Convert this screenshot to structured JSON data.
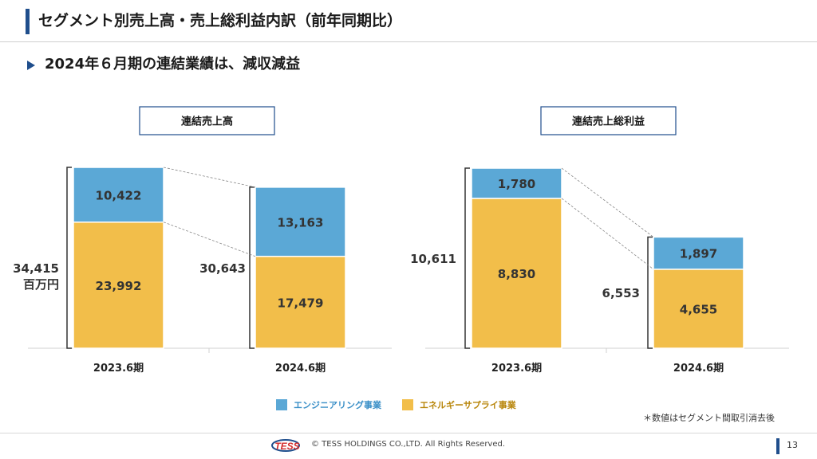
{
  "header": {
    "title": "セグメント別売上高・売上総利益内訳（前年同期比）",
    "subtitle": "2024年６月期の連結業績は、減収減益"
  },
  "colors": {
    "engineering": "#5ba8d6",
    "energy_supply": "#f2be4a",
    "accent": "#1f4e8c",
    "legend_engineering_text": "#3a8fc7",
    "legend_energy_text": "#b8860b"
  },
  "legend": {
    "engineering": "エンジニアリング事業",
    "energy_supply": "エネルギーサプライ事業"
  },
  "note": "＊数値はセグメント間取引消去後",
  "footer": {
    "logo_text": "TESS",
    "copyright": "© TESS HOLDINGS CO.,LTD. All Rights Reserved.",
    "page": "13"
  },
  "chart_data": [
    {
      "type": "bar",
      "stacked": true,
      "title": "連結売上高",
      "categories": [
        "2023.6期",
        "2024.6期"
      ],
      "series": [
        {
          "name": "エネルギーサプライ事業",
          "values": [
            23992,
            17479
          ]
        },
        {
          "name": "エンジニアリング事業",
          "values": [
            10422,
            13163
          ]
        }
      ],
      "totals": [
        34415,
        30643
      ],
      "value_labels": {
        "energy": [
          "23,992",
          "17,479"
        ],
        "eng": [
          "10,422",
          "13,163"
        ]
      },
      "total_labels": [
        "34,415",
        "30,643"
      ],
      "unit": "百万円",
      "ylim": [
        0,
        34415
      ]
    },
    {
      "type": "bar",
      "stacked": true,
      "title": "連結売上総利益",
      "categories": [
        "2023.6期",
        "2024.6期"
      ],
      "series": [
        {
          "name": "エネルギーサプライ事業",
          "values": [
            8830,
            4655
          ]
        },
        {
          "name": "エンジニアリング事業",
          "values": [
            1780,
            1897
          ]
        }
      ],
      "totals": [
        10611,
        6553
      ],
      "value_labels": {
        "energy": [
          "8,830",
          "4,655"
        ],
        "eng": [
          "1,780",
          "1,897"
        ]
      },
      "total_labels": [
        "10,611",
        "6,553"
      ],
      "unit": "",
      "ylim": [
        0,
        10611
      ]
    }
  ]
}
